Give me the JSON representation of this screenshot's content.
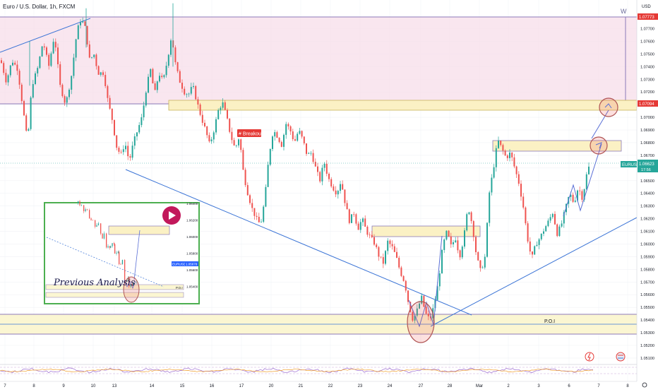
{
  "title": "Euro / U.S. Dollar, 1h, FXCM",
  "currency": "USD",
  "pattern_label": "W",
  "breakout_label": "# Breakout",
  "poi_label": "P.O.I",
  "symbol": "EURUSD",
  "last_price": "1.06623",
  "countdown": "17:56",
  "upper_zone_top": "1.07773",
  "upper_zone_bottom": "1.07094",
  "colors": {
    "up": "#26a69a",
    "down": "#ef5350",
    "zone_pink": "#f7dde9",
    "zone_yellow": "#fbf6d2",
    "trend": "#3b74d6",
    "arrow": "#5a6fd6",
    "inset_border": "#4caf50"
  },
  "inset": {
    "title": "Previous Analysis",
    "symbol": "EURUSD",
    "price": "1.05678",
    "poi_label": "P.O.I",
    "y_ticks": [
      "1.06400",
      "1.06200",
      "1.06000",
      "1.05800",
      "1.05600",
      "1.05400"
    ]
  },
  "chart_data": {
    "type": "candlestick",
    "title": "Euro / U.S. Dollar, 1h, FXCM",
    "x_ticks": [
      "7",
      "8",
      "9",
      "10",
      "13",
      "14",
      "15",
      "16",
      "17",
      "20",
      "21",
      "22",
      "23",
      "24",
      "27",
      "28",
      "Mar",
      "2",
      "3",
      "6",
      "7",
      "8"
    ],
    "y_ticks": [
      "1.07700",
      "1.07600",
      "1.07500",
      "1.07400",
      "1.07300",
      "1.07200",
      "1.07100",
      "1.07000",
      "1.06900",
      "1.06800",
      "1.06700",
      "1.06600",
      "1.06500",
      "1.06400",
      "1.06300",
      "1.06200",
      "1.06100",
      "1.06000",
      "1.05900",
      "1.05800",
      "1.05700",
      "1.05600",
      "1.05500",
      "1.05400",
      "1.05300",
      "1.05200",
      "1.05100"
    ],
    "ylim": [
      1.0504,
      1.0786
    ],
    "grid": true,
    "price_path": [
      [
        0,
        1.0745
      ],
      [
        8,
        1.0728
      ],
      [
        16,
        1.0745
      ],
      [
        24,
        1.0738
      ],
      [
        32,
        1.0705
      ],
      [
        38,
        1.068
      ],
      [
        44,
        1.0725
      ],
      [
        52,
        1.0738
      ],
      [
        60,
        1.076
      ],
      [
        68,
        1.074
      ],
      [
        76,
        1.0765
      ],
      [
        84,
        1.0725
      ],
      [
        92,
        1.071
      ],
      [
        100,
        1.0732
      ],
      [
        108,
        1.0768
      ],
      [
        114,
        1.0778
      ],
      [
        120,
        1.077
      ],
      [
        126,
        1.0745
      ],
      [
        132,
        1.075
      ],
      [
        138,
        1.0735
      ],
      [
        146,
        1.0735
      ],
      [
        152,
        1.0712
      ],
      [
        158,
        1.0698
      ],
      [
        164,
        1.0677
      ],
      [
        170,
        1.067
      ],
      [
        176,
        1.068
      ],
      [
        182,
        1.0665
      ],
      [
        188,
        1.068
      ],
      [
        194,
        1.069
      ],
      [
        200,
        1.07
      ],
      [
        206,
        1.0722
      ],
      [
        212,
        1.0738
      ],
      [
        218,
        1.0718
      ],
      [
        224,
        1.0735
      ],
      [
        230,
        1.0728
      ],
      [
        236,
        1.0745
      ],
      [
        242,
        1.0765
      ],
      [
        248,
        1.074
      ],
      [
        254,
        1.0728
      ],
      [
        260,
        1.072
      ],
      [
        266,
        1.0718
      ],
      [
        272,
        1.0725
      ],
      [
        278,
        1.0712
      ],
      [
        284,
        1.07
      ],
      [
        290,
        1.069
      ],
      [
        296,
        1.0678
      ],
      [
        302,
        1.069
      ],
      [
        308,
        1.0705
      ],
      [
        314,
        1.0712
      ],
      [
        320,
        1.07
      ],
      [
        326,
        1.0685
      ],
      [
        332,
        1.0675
      ],
      [
        338,
        1.0685
      ],
      [
        344,
        1.0655
      ],
      [
        350,
        1.064
      ],
      [
        356,
        1.0628
      ],
      [
        362,
        1.062
      ],
      [
        368,
        1.0615
      ],
      [
        374,
        1.0635
      ],
      [
        380,
        1.067
      ],
      [
        386,
        1.069
      ],
      [
        392,
        1.0685
      ],
      [
        398,
        1.0678
      ],
      [
        404,
        1.0695
      ],
      [
        410,
        1.069
      ],
      [
        416,
        1.068
      ],
      [
        422,
        1.069
      ],
      [
        428,
        1.0682
      ],
      [
        434,
        1.067
      ],
      [
        440,
        1.0672
      ],
      [
        446,
        1.066
      ],
      [
        452,
        1.065
      ],
      [
        458,
        1.0665
      ],
      [
        464,
        1.0652
      ],
      [
        470,
        1.0645
      ],
      [
        476,
        1.064
      ],
      [
        482,
        1.065
      ],
      [
        488,
        1.0632
      ],
      [
        494,
        1.0618
      ],
      [
        500,
        1.0625
      ],
      [
        506,
        1.0612
      ],
      [
        512,
        1.062
      ],
      [
        518,
        1.061
      ],
      [
        524,
        1.0605
      ],
      [
        530,
        1.06
      ],
      [
        536,
        1.059
      ],
      [
        542,
        1.0585
      ],
      [
        548,
        1.0602
      ],
      [
        554,
        1.0598
      ],
      [
        560,
        1.059
      ],
      [
        566,
        1.0578
      ],
      [
        572,
        1.057
      ],
      [
        578,
        1.0552
      ],
      [
        584,
        1.054
      ],
      [
        590,
        1.0548
      ],
      [
        596,
        1.0558
      ],
      [
        602,
        1.0545
      ],
      [
        608,
        1.054
      ],
      [
        614,
        1.0552
      ],
      [
        620,
        1.057
      ],
      [
        626,
        1.0598
      ],
      [
        632,
        1.061
      ],
      [
        638,
        1.0598
      ],
      [
        644,
        1.0605
      ],
      [
        650,
        1.059
      ],
      [
        656,
        1.0605
      ],
      [
        662,
        1.063
      ],
      [
        668,
        1.0615
      ],
      [
        674,
        1.059
      ],
      [
        680,
        1.0578
      ],
      [
        686,
        1.059
      ],
      [
        692,
        1.064
      ],
      [
        698,
        1.066
      ],
      [
        704,
        1.0682
      ],
      [
        710,
        1.0675
      ],
      [
        716,
        1.0668
      ],
      [
        722,
        1.0672
      ],
      [
        728,
        1.066
      ],
      [
        734,
        1.0648
      ],
      [
        740,
        1.063
      ],
      [
        746,
        1.0605
      ],
      [
        752,
        1.0588
      ],
      [
        758,
        1.06
      ],
      [
        764,
        1.0605
      ],
      [
        770,
        1.0612
      ],
      [
        776,
        1.0618
      ],
      [
        782,
        1.0625
      ],
      [
        788,
        1.0608
      ],
      [
        794,
        1.0615
      ],
      [
        800,
        1.0628
      ],
      [
        806,
        1.064
      ],
      [
        812,
        1.0632
      ],
      [
        818,
        1.0645
      ],
      [
        824,
        1.0636
      ],
      [
        830,
        1.0655
      ],
      [
        834,
        1.06623
      ]
    ]
  }
}
